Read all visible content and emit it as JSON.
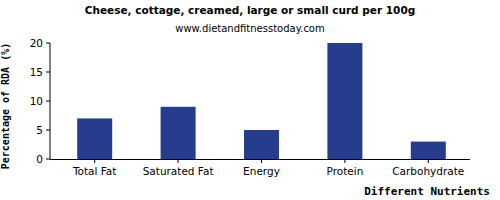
{
  "chart_data": {
    "type": "bar",
    "title": "Cheese, cottage, creamed, large or small curd per 100g",
    "subtitle": "www.dietandfitnesstoday.com",
    "x_label": "Different Nutrients",
    "y_label": "Percentage of RDA (%)",
    "categories": [
      "Total Fat",
      "Saturated Fat",
      "Energy",
      "Protein",
      "Carbohydrate"
    ],
    "values": [
      7,
      9,
      5,
      20,
      3
    ],
    "color": "#263c8c",
    "ylim": [
      0,
      20
    ],
    "yticks": [
      0,
      5,
      10,
      15,
      20
    ],
    "grid": false
  }
}
